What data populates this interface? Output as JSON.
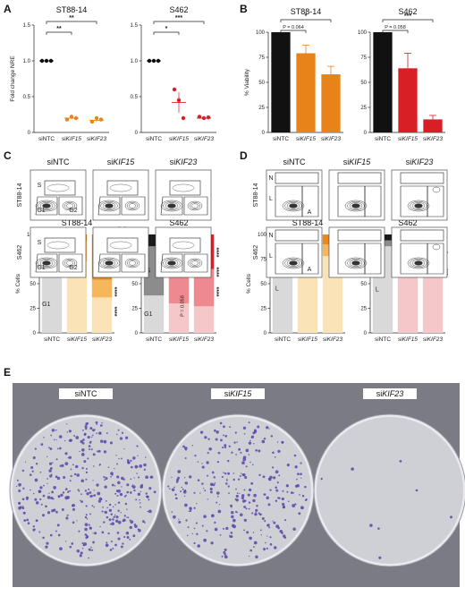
{
  "panels": {
    "a": "A",
    "b": "B",
    "c": "C",
    "d": "D",
    "e": "E"
  },
  "categories": [
    "siNTC",
    "siKIF15",
    "siKIF23"
  ],
  "cat_parts": [
    [
      "siNTC",
      ""
    ],
    [
      "si",
      "KIF15"
    ],
    [
      "si",
      "KIF23"
    ]
  ],
  "cell_lines": {
    "st88": "ST88-14",
    "s462": "S462"
  },
  "colors": {
    "ntc": "#111111",
    "kif15": "#e8831a",
    "kif23": "#d81f26",
    "g1_ntc": "#d9d9d9",
    "s_ntc": "#8c8c8c",
    "g2_ntc": "#1a1a1a",
    "orange_light": "#fbe3b8",
    "orange_mid": "#f6b75c",
    "orange_dark": "#ea8a1c",
    "red_light": "#f6c7c9",
    "red_mid": "#ee8a8f",
    "red_dark": "#e02026",
    "plate_bg": "#cfcfd6",
    "colony": "#5a45a8"
  },
  "chart_data": [
    {
      "panel": "A",
      "type": "scatter",
      "title": "ST88-14",
      "ylabel": "Fold change NRE",
      "ylim": [
        0,
        1.5
      ],
      "yticks": [
        "0",
        "0.5",
        "1.0",
        "1.5"
      ],
      "categories": [
        "siNTC",
        "siKIF15",
        "siKIF23"
      ],
      "points": [
        [
          1.0,
          1.0,
          1.0
        ],
        [
          0.18,
          0.22,
          0.2
        ],
        [
          0.15,
          0.2,
          0.18
        ]
      ],
      "means": [
        1.0,
        0.2,
        0.17
      ],
      "significance": [
        {
          "from": 0,
          "to": 1,
          "label": "**"
        },
        {
          "from": 0,
          "to": 2,
          "label": "**"
        }
      ]
    },
    {
      "panel": "A",
      "type": "scatter",
      "title": "S462",
      "ylabel": "",
      "ylim": [
        0,
        1.5
      ],
      "yticks": [
        "0",
        "0.5",
        "1.0",
        "1.5"
      ],
      "categories": [
        "siNTC",
        "siKIF15",
        "siKIF23"
      ],
      "points": [
        [
          1.0,
          1.0,
          1.0
        ],
        [
          0.6,
          0.45,
          0.2
        ],
        [
          0.22,
          0.2,
          0.21
        ]
      ],
      "means": [
        1.0,
        0.42,
        0.2
      ],
      "significance": [
        {
          "from": 0,
          "to": 1,
          "label": "*"
        },
        {
          "from": 0,
          "to": 2,
          "label": "***"
        }
      ]
    },
    {
      "panel": "B",
      "type": "bar",
      "title": "ST88-14",
      "ylabel": "% Viability",
      "ylim": [
        0,
        100
      ],
      "yticks": [
        "0",
        "25",
        "50",
        "75",
        "100"
      ],
      "categories": [
        "siNTC",
        "siKIF15",
        "siKIF23"
      ],
      "values": [
        100,
        79,
        58
      ],
      "errors": [
        0,
        8,
        8
      ],
      "significance": [
        {
          "from": 0,
          "to": 1,
          "label": "P = 0.064"
        },
        {
          "from": 0,
          "to": 2,
          "label": "*"
        }
      ]
    },
    {
      "panel": "B",
      "type": "bar",
      "title": "S462",
      "ylabel": "",
      "ylim": [
        0,
        100
      ],
      "yticks": [
        "0",
        "25",
        "50",
        "75",
        "100"
      ],
      "categories": [
        "siNTC",
        "siKIF15",
        "siKIF23"
      ],
      "values": [
        100,
        64,
        13
      ],
      "errors": [
        0,
        15,
        4
      ],
      "significance": [
        {
          "from": 0,
          "to": 1,
          "label": "P = 0.058"
        },
        {
          "from": 0,
          "to": 2,
          "label": "***"
        }
      ]
    },
    {
      "panel": "C",
      "type": "bar",
      "subtype": "stacked",
      "title": "ST88-14",
      "ylabel": "% Cells",
      "ylim": [
        0,
        100
      ],
      "yticks": [
        "0",
        "25",
        "50",
        "75",
        "100"
      ],
      "categories": [
        "siNTC",
        "siKIF15",
        "siKIF23"
      ],
      "series": [
        {
          "name": "G1",
          "values": [
            58,
            73,
            36
          ]
        },
        {
          "name": "S",
          "values": [
            30,
            20,
            18
          ]
        },
        {
          "name": "G2",
          "values": [
            12,
            7,
            46
          ]
        }
      ],
      "series_labels": [
        "G1",
        "S",
        "G2"
      ],
      "stars": [
        "****",
        "****",
        "****",
        "****"
      ]
    },
    {
      "panel": "C",
      "type": "bar",
      "subtype": "stacked",
      "title": "S462",
      "ylabel": "",
      "ylim": [
        0,
        100
      ],
      "yticks": [
        "0",
        "25",
        "50",
        "75",
        "100"
      ],
      "categories": [
        "siNTC",
        "siKIF15",
        "siKIF23"
      ],
      "series": [
        {
          "name": "G1",
          "values": [
            38,
            30,
            27
          ]
        },
        {
          "name": "S",
          "values": [
            50,
            55,
            38
          ]
        },
        {
          "name": "G2",
          "values": [
            12,
            15,
            35
          ]
        }
      ],
      "series_labels": [
        "G1",
        "S",
        "G2"
      ],
      "legend_g2": "G2",
      "annotation": "P = 0.058",
      "stars": [
        "****",
        "****",
        "****"
      ]
    },
    {
      "panel": "D",
      "type": "bar",
      "subtype": "stacked",
      "title": "ST88-14",
      "ylabel": "% Cells",
      "ylim": [
        0,
        100
      ],
      "yticks": [
        "0",
        "25",
        "50",
        "75",
        "100"
      ],
      "categories": [
        "siNTC",
        "siKIF15",
        "siKIF23"
      ],
      "series": [
        {
          "name": "L",
          "values": [
            90,
            87,
            78
          ]
        },
        {
          "name": "A",
          "values": [
            4,
            8,
            12
          ]
        },
        {
          "name": "N",
          "values": [
            6,
            5,
            10
          ]
        }
      ],
      "series_labels": [
        "L",
        "A",
        "N"
      ],
      "stars": [
        "*",
        "**"
      ]
    },
    {
      "panel": "D",
      "type": "bar",
      "subtype": "stacked",
      "title": "S462",
      "ylabel": "",
      "ylim": [
        0,
        100
      ],
      "yticks": [
        "0",
        "25",
        "50",
        "75",
        "100"
      ],
      "categories": [
        "siNTC",
        "siKIF15",
        "siKIF23"
      ],
      "series": [
        {
          "name": "L",
          "values": [
            88,
            73,
            64
          ]
        },
        {
          "name": "A",
          "values": [
            6,
            12,
            14
          ]
        },
        {
          "name": "N",
          "values": [
            6,
            15,
            22
          ]
        }
      ],
      "series_labels": [
        "L",
        "A",
        "N"
      ],
      "stars": [
        "*",
        "***"
      ]
    }
  ],
  "flow": {
    "c_gates": [
      "S",
      "G1",
      "G2"
    ],
    "d_gates": [
      "N",
      "L",
      "A"
    ],
    "plate_titles": [
      "siNTC",
      "siKIF15",
      "siKIF23"
    ]
  },
  "plates": {
    "labels": [
      [
        "siNTC",
        ""
      ],
      [
        "si",
        "KIF15"
      ],
      [
        "si",
        "KIF23"
      ]
    ],
    "density": [
      0.9,
      0.7,
      0.02
    ]
  }
}
